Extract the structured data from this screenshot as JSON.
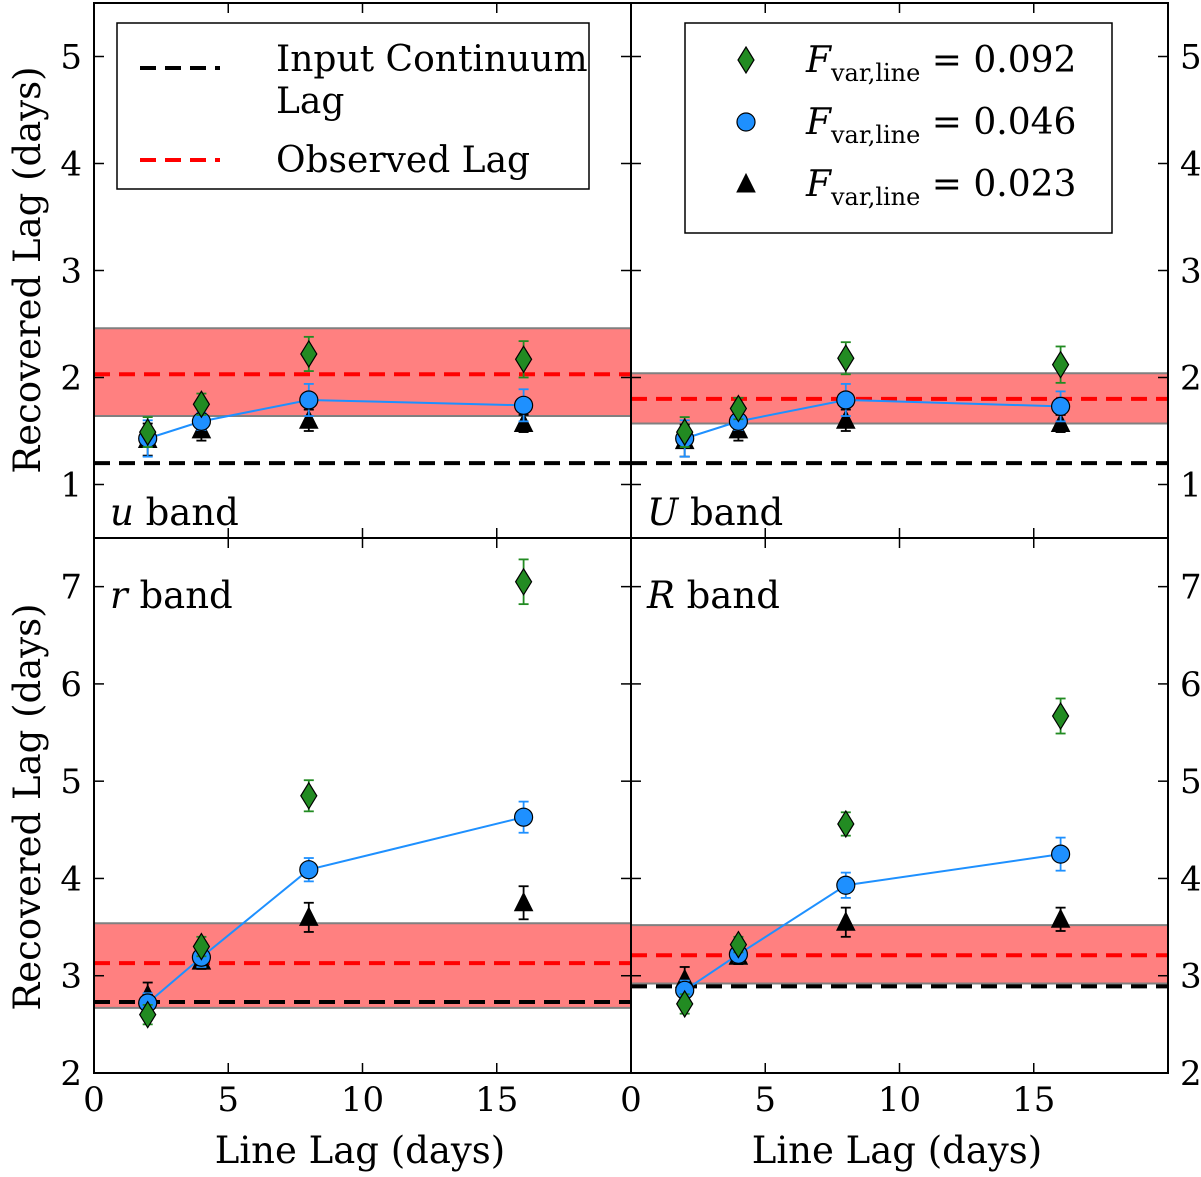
{
  "figure": {
    "x_axis_label": "Line Lag (days)",
    "y_axis_label": "Recovered Lag (days)"
  },
  "legend_left": {
    "entries": [
      {
        "label_line1": "Input Continuum",
        "label_line2": "Lag",
        "color": "#000000",
        "style": "dashed"
      },
      {
        "label_line1": "Observed Lag",
        "label_line2": "",
        "color": "#ff0000",
        "style": "dashed"
      }
    ]
  },
  "legend_right": {
    "entries": [
      {
        "symbol": "diamond",
        "color": "#228b22",
        "var": "F",
        "sub": "var,line",
        "rel": "=",
        "value": "0.092"
      },
      {
        "symbol": "circle",
        "color": "#1e90ff",
        "var": "F",
        "sub": "var,line",
        "rel": "=",
        "value": "0.046"
      },
      {
        "symbol": "triangle",
        "color": "#000000",
        "var": "F",
        "sub": "var,line",
        "rel": "=",
        "value": "0.023"
      }
    ]
  },
  "colors": {
    "diamond": "#228b22",
    "circle": "#1e90ff",
    "triangle": "#000000",
    "band_fill": "#ff8080",
    "band_edge": "#808080",
    "observed_line": "#ff0000",
    "continuum_line": "#000000"
  },
  "chart_data": [
    {
      "type": "scatter",
      "band_italic": "u",
      "band_word": "band",
      "band_label_position": "bottom-left",
      "xlim": [
        0,
        20
      ],
      "ylim": [
        0.5,
        5.5
      ],
      "x_ticks": [
        "0",
        "5",
        "10",
        "15"
      ],
      "y_ticks": [
        "1",
        "2",
        "3",
        "4",
        "5"
      ],
      "y_tick_values": [
        1,
        2,
        3,
        4,
        5
      ],
      "continuum_lag": 1.2,
      "observed_lag": 2.03,
      "observed_band": [
        1.64,
        2.46
      ],
      "x": [
        2,
        4,
        8,
        16
      ],
      "series": [
        {
          "symbol": "diamond",
          "values": [
            1.49,
            1.75,
            2.22,
            2.17
          ],
          "err": [
            0.14,
            0.1,
            0.16,
            0.17
          ]
        },
        {
          "symbol": "circle",
          "values": [
            1.43,
            1.59,
            1.79,
            1.74
          ],
          "err": [
            0.17,
            0.08,
            0.15,
            0.15
          ],
          "connected": true
        },
        {
          "symbol": "triangle",
          "values": [
            1.42,
            1.51,
            1.6,
            1.57
          ],
          "err": [
            0.15,
            0.1,
            0.1,
            0.08
          ]
        }
      ]
    },
    {
      "type": "scatter",
      "band_italic": "U",
      "band_word": "band",
      "band_label_position": "bottom-left",
      "xlim": [
        0,
        20
      ],
      "ylim": [
        0.5,
        5.5
      ],
      "x_ticks": [
        "0",
        "5",
        "10",
        "15"
      ],
      "y_ticks": [
        "1",
        "2",
        "3",
        "4",
        "5"
      ],
      "y_tick_values": [
        1,
        2,
        3,
        4,
        5
      ],
      "continuum_lag": 1.2,
      "observed_lag": 1.8,
      "observed_band": [
        1.57,
        2.04
      ],
      "x": [
        2,
        4,
        8,
        16
      ],
      "series": [
        {
          "symbol": "diamond",
          "values": [
            1.49,
            1.71,
            2.18,
            2.12
          ],
          "err": [
            0.14,
            0.1,
            0.15,
            0.17
          ]
        },
        {
          "symbol": "circle",
          "values": [
            1.43,
            1.59,
            1.79,
            1.73
          ],
          "err": [
            0.17,
            0.08,
            0.15,
            0.14
          ],
          "connected": true
        },
        {
          "symbol": "triangle",
          "values": [
            1.41,
            1.51,
            1.6,
            1.57
          ],
          "err": [
            0.15,
            0.1,
            0.1,
            0.08
          ]
        }
      ]
    },
    {
      "type": "scatter",
      "band_italic": "r",
      "band_word": "band",
      "band_label_position": "top-left",
      "xlim": [
        0,
        20
      ],
      "ylim": [
        2,
        7.5
      ],
      "x_ticks": [
        "0",
        "5",
        "10",
        "15"
      ],
      "y_ticks": [
        "2",
        "3",
        "4",
        "5",
        "6",
        "7"
      ],
      "y_tick_values": [
        2,
        3,
        4,
        5,
        6,
        7
      ],
      "continuum_lag": 2.73,
      "observed_lag": 3.13,
      "observed_band": [
        2.67,
        3.54
      ],
      "x": [
        2,
        4,
        8,
        16
      ],
      "series": [
        {
          "symbol": "diamond",
          "values": [
            2.6,
            3.3,
            4.85,
            7.05
          ],
          "err": [
            0.1,
            0.1,
            0.16,
            0.23
          ]
        },
        {
          "symbol": "circle",
          "values": [
            2.72,
            3.19,
            4.09,
            4.63
          ],
          "err": [
            0.1,
            0.1,
            0.12,
            0.16
          ],
          "connected": true
        },
        {
          "symbol": "triangle",
          "values": [
            2.8,
            3.15,
            3.6,
            3.75
          ],
          "err": [
            0.13,
            0.08,
            0.15,
            0.17
          ]
        }
      ]
    },
    {
      "type": "scatter",
      "band_italic": "R",
      "band_word": "band",
      "band_label_position": "top-left",
      "xlim": [
        0,
        20
      ],
      "ylim": [
        2,
        7.5
      ],
      "x_ticks": [
        "0",
        "5",
        "10",
        "15"
      ],
      "y_ticks": [
        "2",
        "3",
        "4",
        "5",
        "6",
        "7"
      ],
      "y_tick_values": [
        2,
        3,
        4,
        5,
        6,
        7
      ],
      "continuum_lag": 2.89,
      "observed_lag": 3.21,
      "observed_band": [
        2.92,
        3.52
      ],
      "x": [
        2,
        4,
        8,
        16
      ],
      "series": [
        {
          "symbol": "diamond",
          "values": [
            2.71,
            3.32,
            4.56,
            5.67
          ],
          "err": [
            0.1,
            0.08,
            0.12,
            0.18
          ]
        },
        {
          "symbol": "circle",
          "values": [
            2.85,
            3.22,
            3.93,
            4.25
          ],
          "err": [
            0.1,
            0.08,
            0.13,
            0.17
          ],
          "connected": true
        },
        {
          "symbol": "triangle",
          "values": [
            2.96,
            3.2,
            3.55,
            3.58
          ],
          "err": [
            0.13,
            0.08,
            0.15,
            0.12
          ]
        }
      ]
    }
  ]
}
